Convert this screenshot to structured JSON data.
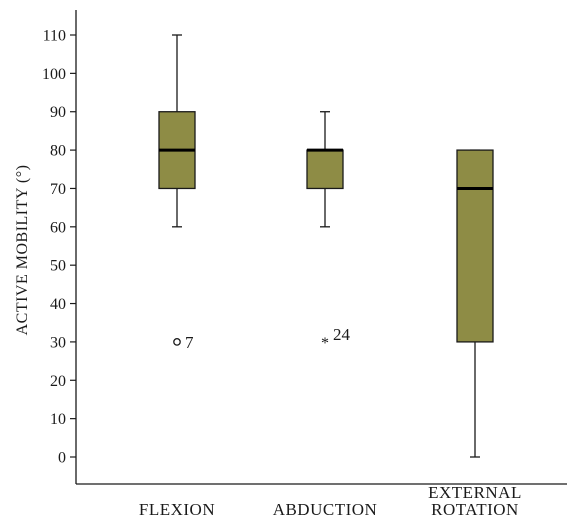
{
  "chart_data": {
    "type": "boxplot",
    "ylabel": "ACTIVE MOBILITY (°)",
    "ylim": [
      -5,
      115
    ],
    "yticks": [
      0,
      10,
      20,
      30,
      40,
      50,
      60,
      70,
      80,
      90,
      100,
      110
    ],
    "categories": [
      {
        "label_lines": [
          "FLEXION"
        ]
      },
      {
        "label_lines": [
          "ABDUCTION"
        ]
      },
      {
        "label_lines": [
          "EXTERNAL",
          "ROTATION"
        ]
      }
    ],
    "boxes": [
      {
        "whisker_low": 60,
        "q1": 70,
        "median": 80,
        "q3": 90,
        "whisker_high": 110,
        "outliers": [
          {
            "value": 30,
            "label": "7",
            "marker": "circle"
          }
        ]
      },
      {
        "whisker_low": 60,
        "q1": 70,
        "median": 80,
        "q3": 80,
        "whisker_high": 90,
        "outliers": [
          {
            "value": 30,
            "label": "24",
            "marker": "star"
          }
        ]
      },
      {
        "whisker_low": 0,
        "q1": 30,
        "median": 70,
        "q3": 80,
        "whisker_high": 80,
        "outliers": []
      }
    ],
    "colors": {
      "box_fill": "#8e8c45",
      "line": "#1a1a1a"
    }
  }
}
